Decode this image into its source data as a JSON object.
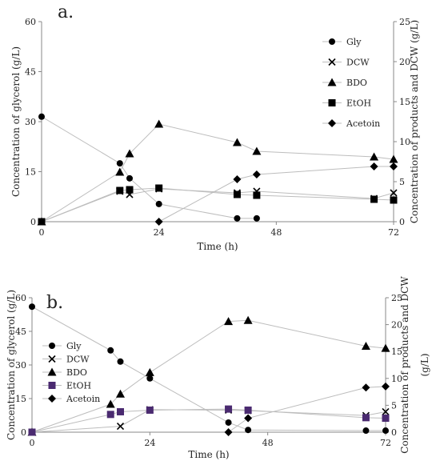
{
  "chart_data": [
    {
      "panel_label": "a.",
      "type": "scatter",
      "connected": true,
      "xlabel": "Time (h)",
      "ylabel": "Concentration of glycerol  (g/L)",
      "y2label": "Concentration of products and DCW  (g/L)",
      "xlim": [
        0,
        72
      ],
      "ylim": [
        0,
        60
      ],
      "y2lim": [
        0,
        25
      ],
      "xticks": [
        "0",
        "24",
        "48",
        "72"
      ],
      "yticks": [
        "0",
        "15",
        "30",
        "45",
        "60"
      ],
      "y2ticks": [
        "0",
        "5",
        "10",
        "15",
        "20",
        "25"
      ],
      "legend_position": "top-right",
      "grid": false,
      "series": [
        {
          "name": "Gly",
          "marker": "circle",
          "axis": "left",
          "color": "#000000",
          "x": [
            0,
            16,
            18,
            24,
            40,
            44
          ],
          "y": [
            31.5,
            17.5,
            13,
            5.3,
            1,
            1
          ]
        },
        {
          "name": "DCW",
          "marker": "x",
          "axis": "right",
          "color": "#000000",
          "x": [
            0,
            16,
            18,
            24,
            40,
            44,
            68,
            72
          ],
          "y": [
            0,
            3.8,
            3.4,
            4.1,
            3.6,
            3.8,
            2.9,
            3.6
          ]
        },
        {
          "name": "BDO",
          "marker": "triangle",
          "axis": "right",
          "color": "#000000",
          "x": [
            0,
            16,
            18,
            24,
            40,
            44,
            68,
            72
          ],
          "y": [
            0,
            6.2,
            8.5,
            12.2,
            9.9,
            8.8,
            8.1,
            7.8
          ]
        },
        {
          "name": "EtOH",
          "marker": "square",
          "axis": "right",
          "color": "#000000",
          "x": [
            0,
            16,
            18,
            24,
            40,
            44,
            68,
            72
          ],
          "y": [
            0,
            3.9,
            4.0,
            4.2,
            3.4,
            3.3,
            2.8,
            2.7
          ]
        },
        {
          "name": "Acetoin",
          "marker": "diamond",
          "axis": "right",
          "color": "#000000",
          "x": [
            24,
            40,
            44,
            68,
            72
          ],
          "y": [
            0,
            5.3,
            5.9,
            6.9,
            6.9
          ]
        }
      ]
    },
    {
      "panel_label": "b.",
      "type": "scatter",
      "connected": true,
      "xlabel": "Time (h)",
      "ylabel": "Concentration of glycerol  (g/L)",
      "y2label": "Concentration of products and DCW",
      "y2label_unit": "(g/L)",
      "xlim": [
        0,
        72
      ],
      "ylim": [
        0,
        60
      ],
      "y2lim": [
        0,
        25
      ],
      "xticks": [
        "0",
        "24",
        "48",
        "72"
      ],
      "yticks": [
        "0",
        "15",
        "30",
        "45",
        "60"
      ],
      "y2ticks": [
        "0",
        "5",
        "10",
        "15",
        "20",
        "25"
      ],
      "legend_position": "left",
      "grid": false,
      "series": [
        {
          "name": "Gly",
          "marker": "circle",
          "axis": "left",
          "color": "#000000",
          "x": [
            0,
            16,
            18,
            24,
            40,
            44,
            68,
            72
          ],
          "y": [
            56,
            36.5,
            31.5,
            24,
            4.3,
            1,
            0.7,
            0.7
          ]
        },
        {
          "name": "DCW",
          "marker": "x",
          "axis": "right",
          "color": "#000000",
          "x": [
            0,
            18,
            24,
            40,
            44,
            68,
            72
          ],
          "y": [
            0,
            1.1,
            4.2,
            4.1,
            4.0,
            3.1,
            3.8
          ]
        },
        {
          "name": "BDO",
          "marker": "triangle",
          "axis": "right",
          "color": "#000000",
          "x": [
            0,
            16,
            18,
            24,
            40,
            44,
            68,
            72
          ],
          "y": [
            0,
            5.2,
            7.1,
            11.1,
            20.6,
            20.8,
            16,
            15.6
          ]
        },
        {
          "name": "EtOH",
          "marker": "square",
          "axis": "right",
          "color": "#4a2a70",
          "x": [
            0,
            16,
            18,
            24,
            40,
            44,
            68,
            72
          ],
          "y": [
            0,
            3.3,
            3.8,
            4.1,
            4.3,
            4.1,
            2.7,
            2.6
          ]
        },
        {
          "name": "Acetoin",
          "marker": "diamond",
          "axis": "right",
          "color": "#000000",
          "x": [
            40,
            44,
            68,
            72
          ],
          "y": [
            0,
            2.6,
            8.3,
            8.5
          ]
        }
      ]
    }
  ]
}
